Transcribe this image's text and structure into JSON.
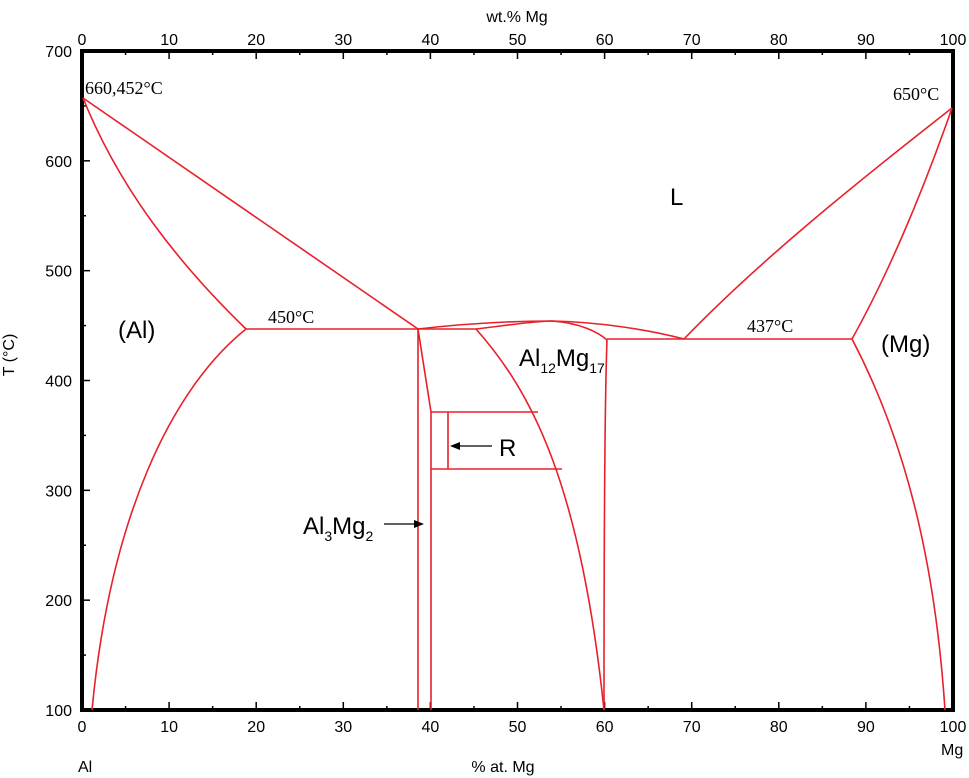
{
  "colors": {
    "frame": "#000000",
    "phase_line": "#e8202a",
    "text": "#000000"
  },
  "axes": {
    "top_title": "wt.% Mg",
    "bottom_title": "% at. Mg",
    "left_title": "T (°C)",
    "left_element": "Al",
    "right_element": "Mg",
    "top_ticks": [
      "0",
      "10",
      "20",
      "30",
      "40",
      "50",
      "60",
      "70",
      "80",
      "90",
      "100"
    ],
    "bottom_ticks": [
      "0",
      "10",
      "20",
      "30",
      "40",
      "50",
      "60",
      "70",
      "80",
      "90",
      "100"
    ],
    "y_ticks": [
      "100",
      "200",
      "300",
      "400",
      "500",
      "600",
      "700"
    ]
  },
  "labels": {
    "al_melting": "660,452°C",
    "mg_melting": "650°C",
    "eutectic_left": "450°C",
    "eutectic_right": "437°C",
    "liquid": "L",
    "al_phase": "(Al)",
    "mg_phase": "(Mg)",
    "gamma_base": "Al",
    "gamma_sub1": "12",
    "gamma_mid": "Mg",
    "gamma_sub2": "17",
    "beta_base": "Al",
    "beta_sub1": "3",
    "beta_mid": "Mg",
    "beta_sub2": "2",
    "r_phase": "R"
  },
  "chart_data": {
    "type": "phase-diagram",
    "xlabel": "% at. Mg",
    "x2label": "wt.% Mg",
    "ylabel": "T (°C)",
    "xlim": [
      0,
      100
    ],
    "ylim": [
      100,
      700
    ],
    "special_points": [
      {
        "label": "660,452°C",
        "x": 0,
        "y": 660.452
      },
      {
        "label": "650°C",
        "x": 100,
        "y": 650
      },
      {
        "label": "450°C",
        "x_range": [
          18.9,
          38.5
        ],
        "y": 450
      },
      {
        "label": "437°C",
        "x_range": [
          69,
          88.5
        ],
        "y": 437
      }
    ],
    "phases": [
      "L",
      "(Al)",
      "(Mg)",
      "Al12Mg17",
      "Al3Mg2",
      "R"
    ]
  }
}
